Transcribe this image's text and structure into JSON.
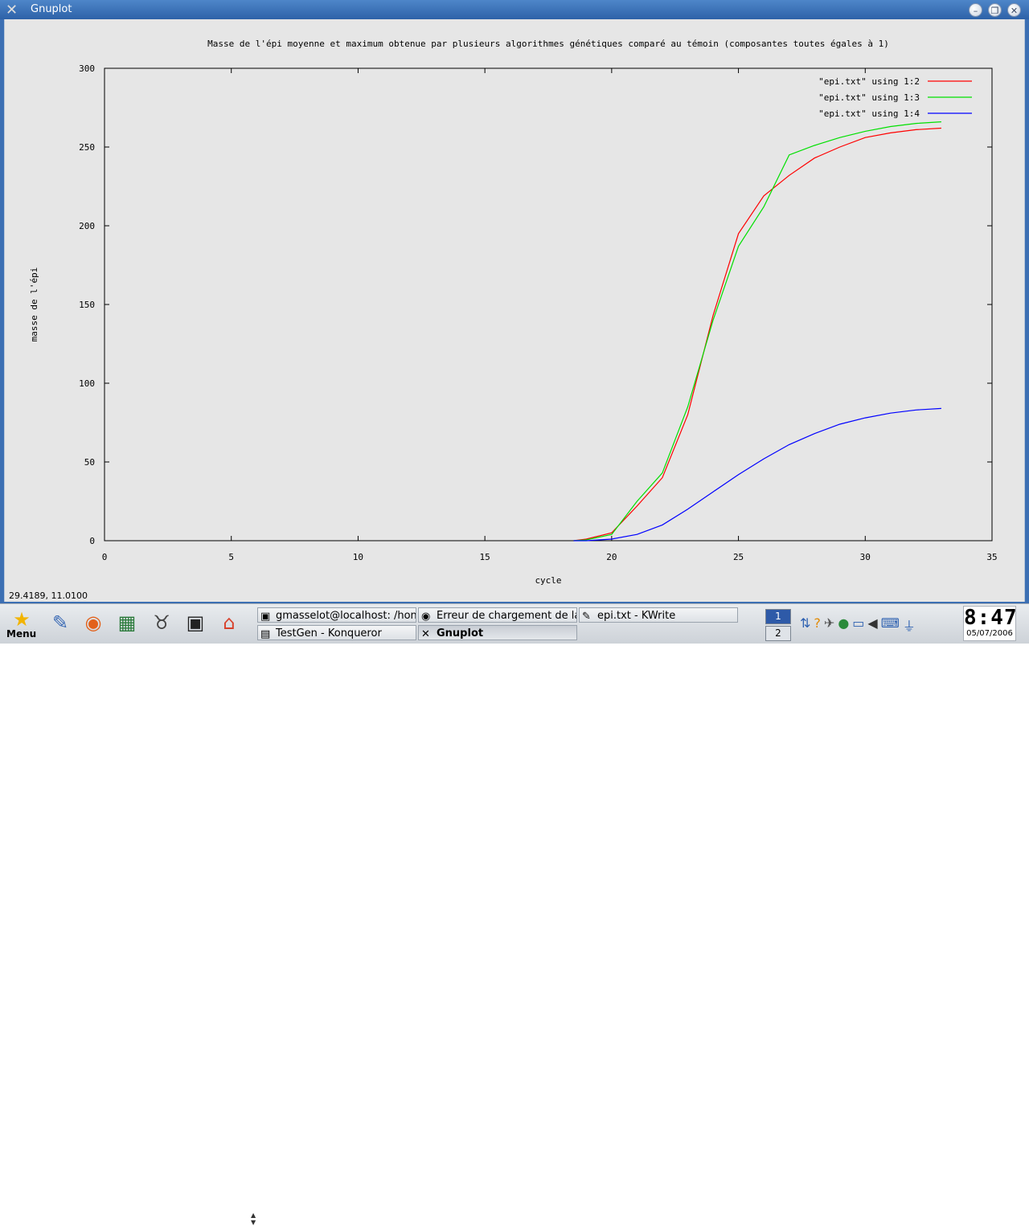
{
  "window": {
    "title": "Gnuplot",
    "app_icon": "x-window-icon",
    "buttons": {
      "minimize": "minimize-icon",
      "maximize": "maximize-icon",
      "close": "close-icon"
    }
  },
  "chart_data": {
    "type": "line",
    "title": "Masse de l'épi moyenne et maximum obtenue par plusieurs algorithmes génétiques comparé au témoin (composantes toutes égales à 1)",
    "xlabel": "cycle",
    "ylabel": "masse de l'épi",
    "xlim": [
      0,
      35
    ],
    "ylim": [
      0,
      300
    ],
    "xticks": [
      0,
      5,
      10,
      15,
      20,
      25,
      30,
      35
    ],
    "yticks": [
      0,
      50,
      100,
      150,
      200,
      250,
      300
    ],
    "grid": false,
    "legend_position": "top-right",
    "series": [
      {
        "name": "\"epi.txt\" using 1:2",
        "color": "#ff0000",
        "x": [
          18.5,
          19,
          20,
          21,
          22,
          23,
          24,
          25,
          26,
          27,
          28,
          29,
          30,
          31,
          32,
          33
        ],
        "y": [
          0,
          1,
          5,
          22,
          40,
          80,
          143,
          195,
          219,
          232,
          243,
          250,
          256,
          259,
          261,
          262
        ]
      },
      {
        "name": "\"epi.txt\" using 1:3",
        "color": "#00e000",
        "x": [
          18.5,
          19,
          20,
          21,
          22,
          23,
          24,
          25,
          26,
          27,
          28,
          29,
          30,
          31,
          32,
          33
        ],
        "y": [
          0,
          0.5,
          4,
          25,
          43,
          85,
          140,
          187,
          212,
          245,
          251,
          256,
          260,
          263,
          265,
          266
        ]
      },
      {
        "name": "\"epi.txt\" using 1:4",
        "color": "#0000ff",
        "x": [
          18.5,
          19,
          20,
          21,
          22,
          23,
          24,
          25,
          26,
          27,
          28,
          29,
          30,
          31,
          32,
          33
        ],
        "y": [
          0,
          0,
          1,
          4,
          10,
          20,
          31,
          42,
          52,
          61,
          68,
          74,
          78,
          81,
          83,
          84
        ]
      }
    ]
  },
  "status": {
    "coords": "29.4189,  11.0100"
  },
  "taskbar": {
    "menu_label": "Menu",
    "launchers": [
      {
        "name": "star-menu-icon",
        "glyph": "★"
      },
      {
        "name": "pen-paper-icon",
        "glyph": "✎"
      },
      {
        "name": "firefox-icon",
        "glyph": "◉"
      },
      {
        "name": "calendar-icon",
        "glyph": "▦"
      },
      {
        "name": "gnu-icon",
        "glyph": "♉"
      },
      {
        "name": "terminal-icon",
        "glyph": "▣"
      },
      {
        "name": "home-icon",
        "glyph": "⌂"
      }
    ],
    "tasks": [
      {
        "label": "gmasselot@localhost: /hon",
        "icon": "terminal-icon",
        "glyph": "▣"
      },
      {
        "label": "Erreur de chargement de la",
        "icon": "firefox-icon",
        "glyph": "◉"
      },
      {
        "label": "epi.txt - KWrite",
        "icon": "kwrite-icon",
        "glyph": "✎"
      },
      {
        "label": "TestGen - Konqueror",
        "icon": "konqueror-icon",
        "glyph": "▤"
      },
      {
        "label": "Gnuplot",
        "icon": "x-window-icon",
        "glyph": "✕"
      }
    ],
    "pager": [
      "1",
      "2"
    ],
    "tray": [
      {
        "name": "network-icon",
        "glyph": "⇅"
      },
      {
        "name": "help-icon",
        "glyph": "?"
      },
      {
        "name": "satellite-icon",
        "glyph": "✈"
      },
      {
        "name": "colors-icon",
        "glyph": "●"
      },
      {
        "name": "monitor-icon",
        "glyph": "▭"
      },
      {
        "name": "volume-icon",
        "glyph": "◀"
      },
      {
        "name": "keyboard-icon",
        "glyph": "⌨"
      },
      {
        "name": "plug-icon",
        "glyph": "⏚"
      }
    ],
    "clock": {
      "time": "8:47",
      "date": "05/07/2006"
    }
  }
}
